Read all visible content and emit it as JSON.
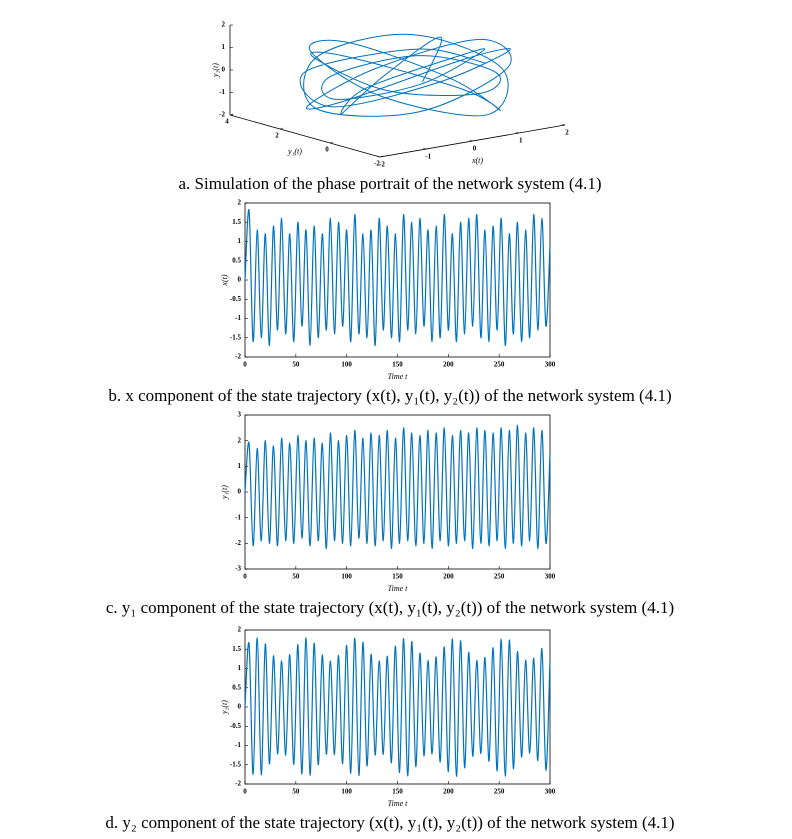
{
  "chart_data": [
    {
      "type": "line3d",
      "caption": "a. Simulation of the phase portrait of the network system (4.1)",
      "xlabel": "x(t)",
      "ylabel": "y₁(t)",
      "zlabel": "y₂(t)",
      "color": "#0072bd",
      "xlim": [
        -2,
        2
      ],
      "xticks": [
        -2,
        -1,
        0,
        1,
        2
      ],
      "ylim": [
        -2,
        4
      ],
      "yticks": [
        -2,
        0,
        2,
        4
      ],
      "zlim": [
        -2,
        2
      ],
      "zticks": [
        -2,
        -1,
        0,
        1,
        2
      ],
      "x": [
        0,
        1.2,
        0.4,
        -1.1,
        -1.4,
        0.2,
        1.4,
        0.9,
        -0.6,
        -1.5,
        -0.5,
        1.0,
        1.5,
        0.3,
        -1.2,
        -1.3,
        0.4,
        1.3,
        1.1,
        -0.4,
        -1.4,
        -0.8,
        0.8,
        1.5,
        0.5,
        -1.0,
        -1.5,
        -0.2,
        1.2,
        1.3,
        -0.1,
        -1.3,
        -1.1,
        0.6,
        1.4,
        0.7,
        -0.9,
        -1.4,
        0.1,
        1.1
      ],
      "y": [
        0,
        1.5,
        2.3,
        1.2,
        -0.3,
        -1.2,
        0.2,
        1.8,
        2.4,
        0.9,
        -0.8,
        -1.1,
        0.5,
        2.0,
        2.2,
        0.6,
        -0.9,
        -0.7,
        1.0,
        2.3,
        1.9,
        0.2,
        -1.1,
        -0.4,
        1.4,
        2.4,
        1.5,
        -0.2,
        -1.2,
        0.1,
        1.7,
        2.2,
        1.1,
        -0.6,
        -0.9,
        0.7,
        2.0,
        2.1,
        0.4,
        -0.5
      ],
      "z": [
        0,
        1.1,
        -0.6,
        -1.4,
        0.3,
        1.5,
        0.8,
        -1.0,
        -1.3,
        0.5,
        1.6,
        0.4,
        -1.2,
        -1.1,
        0.9,
        1.4,
        -0.2,
        -1.5,
        -0.5,
        1.2,
        1.3,
        -0.4,
        -1.4,
        0.2,
        1.5,
        0.7,
        -1.1,
        -1.2,
        0.6,
        1.4,
        0.1,
        -1.3,
        -0.8,
        1.0,
        1.2,
        -0.5,
        -1.4,
        0.3,
        1.3,
        0.6
      ]
    },
    {
      "type": "line",
      "caption": "b. x component of the state trajectory (x(t), y₁(t), y₂(t)) of the network system (4.1)",
      "xlabel": "Time t",
      "ylabel": "x(t)",
      "color": "#0072bd",
      "xlim": [
        0,
        300
      ],
      "xticks": [
        0,
        50,
        100,
        150,
        200,
        250,
        300
      ],
      "ylim": [
        -2,
        2
      ],
      "yticks": [
        -2,
        -1.5,
        -1,
        -0.5,
        0,
        0.5,
        1,
        1.5,
        2
      ],
      "x": [
        0,
        4,
        8,
        12,
        16,
        20,
        24,
        28,
        32,
        36,
        40,
        44,
        48,
        52,
        56,
        60,
        64,
        68,
        72,
        76,
        80,
        84,
        88,
        92,
        96,
        100,
        104,
        108,
        112,
        116,
        120,
        124,
        128,
        132,
        136,
        140,
        144,
        148,
        152,
        156,
        160,
        164,
        168,
        172,
        176,
        180,
        184,
        188,
        192,
        196,
        200,
        204,
        208,
        212,
        216,
        220,
        224,
        228,
        232,
        236,
        240,
        244,
        248,
        252,
        256,
        260,
        264,
        268,
        272,
        276,
        280,
        284,
        288,
        292,
        296,
        300
      ],
      "values": [
        0,
        1.8,
        -1.6,
        1.3,
        -1.5,
        1.2,
        -1.7,
        1.4,
        -1.3,
        1.6,
        -1.4,
        1.2,
        -1.6,
        1.5,
        -1.2,
        1.3,
        -1.7,
        1.4,
        -1.5,
        1.2,
        -1.3,
        1.6,
        -1.4,
        1.5,
        -1.2,
        1.3,
        -1.6,
        1.7,
        -1.4,
        1.2,
        -1.5,
        1.3,
        -1.7,
        1.6,
        -1.3,
        1.4,
        -1.5,
        1.2,
        -1.6,
        1.7,
        -1.3,
        1.5,
        -1.4,
        1.6,
        -1.2,
        1.3,
        -1.6,
        1.4,
        -1.5,
        1.7,
        -1.3,
        1.2,
        -1.6,
        1.5,
        -1.4,
        1.6,
        -1.2,
        1.7,
        -1.5,
        1.3,
        -1.6,
        1.4,
        -1.3,
        1.6,
        -1.7,
        1.2,
        -1.4,
        1.5,
        -1.6,
        1.3,
        -1.5,
        1.7,
        -1.3,
        1.6,
        -1.2,
        0.9
      ]
    },
    {
      "type": "line",
      "caption": "c. y₁ component of the state trajectory (x(t), y₁(t), y₂(t)) of the network system (4.1)",
      "xlabel": "Time t",
      "ylabel": "y₁(t)",
      "color": "#0072bd",
      "xlim": [
        0,
        300
      ],
      "xticks": [
        0,
        50,
        100,
        150,
        200,
        250,
        300
      ],
      "ylim": [
        -3,
        3
      ],
      "yticks": [
        -3,
        -2,
        -1,
        0,
        1,
        2,
        3
      ],
      "x": [
        0,
        4,
        8,
        12,
        16,
        20,
        24,
        28,
        32,
        36,
        40,
        44,
        48,
        52,
        56,
        60,
        64,
        68,
        72,
        76,
        80,
        84,
        88,
        92,
        96,
        100,
        104,
        108,
        112,
        116,
        120,
        124,
        128,
        132,
        136,
        140,
        144,
        148,
        152,
        156,
        160,
        164,
        168,
        172,
        176,
        180,
        184,
        188,
        192,
        196,
        200,
        204,
        208,
        212,
        216,
        220,
        224,
        228,
        232,
        236,
        240,
        244,
        248,
        252,
        256,
        260,
        264,
        268,
        272,
        276,
        280,
        284,
        288,
        292,
        296,
        300
      ],
      "values": [
        0,
        1.9,
        -2.1,
        1.7,
        -1.9,
        2.0,
        -2.0,
        1.8,
        -2.1,
        2.1,
        -1.9,
        1.9,
        -2.0,
        2.2,
        -1.8,
        2.0,
        -2.1,
        2.1,
        -1.9,
        1.9,
        -2.2,
        2.3,
        -1.9,
        2.0,
        -2.0,
        2.2,
        -2.1,
        2.4,
        -1.8,
        2.1,
        -2.0,
        2.3,
        -2.1,
        2.2,
        -1.9,
        2.4,
        -2.2,
        2.1,
        -2.0,
        2.5,
        -1.9,
        2.3,
        -2.1,
        2.2,
        -2.0,
        2.4,
        -2.2,
        2.3,
        -1.9,
        2.5,
        -2.1,
        2.2,
        -2.0,
        2.4,
        -1.9,
        2.3,
        -2.2,
        2.5,
        -2.0,
        2.4,
        -2.1,
        2.3,
        -1.9,
        2.5,
        -2.2,
        2.4,
        -2.0,
        2.6,
        -2.1,
        2.3,
        -1.9,
        2.5,
        -2.2,
        2.4,
        -2.0,
        1.5
      ]
    },
    {
      "type": "line",
      "caption": "d. y₂ component of the state trajectory (x(t), y₁(t), y₂(t)) of the network system (4.1)",
      "xlabel": "Time t",
      "ylabel": "y₂(t)",
      "color": "#0072bd",
      "xlim": [
        0,
        300
      ],
      "xticks": [
        0,
        50,
        100,
        150,
        200,
        250,
        300
      ],
      "ylim": [
        -2,
        2
      ],
      "yticks": [
        -2,
        -1.5,
        -1,
        -0.5,
        0,
        0.5,
        1,
        1.5,
        2
      ],
      "x": [
        0,
        4,
        8,
        12,
        16,
        20,
        24,
        28,
        32,
        36,
        40,
        44,
        48,
        52,
        56,
        60,
        64,
        68,
        72,
        76,
        80,
        84,
        88,
        92,
        96,
        100,
        104,
        108,
        112,
        116,
        120,
        124,
        128,
        132,
        136,
        140,
        144,
        148,
        152,
        156,
        160,
        164,
        168,
        172,
        176,
        180,
        184,
        188,
        192,
        196,
        200,
        204,
        208,
        212,
        216,
        220,
        224,
        228,
        232,
        236,
        240,
        244,
        248,
        252,
        256,
        260,
        264,
        268,
        272,
        276,
        280,
        284,
        288,
        292,
        296,
        300
      ],
      "values": [
        0,
        1.64,
        -1.75,
        1.8,
        -1.76,
        1.64,
        -1.48,
        1.33,
        -1.22,
        1.2,
        -1.25,
        1.36,
        -1.49,
        1.62,
        -1.74,
        1.8,
        -1.77,
        1.66,
        -1.5,
        1.35,
        -1.23,
        1.2,
        -1.24,
        1.34,
        -1.47,
        1.6,
        -1.72,
        1.79,
        -1.78,
        1.68,
        -1.53,
        1.37,
        -1.25,
        1.2,
        -1.23,
        1.32,
        -1.45,
        1.58,
        -1.7,
        1.78,
        -1.79,
        1.7,
        -1.55,
        1.4,
        -1.27,
        1.21,
        -1.22,
        1.3,
        -1.43,
        1.56,
        -1.68,
        1.77,
        -1.8,
        1.72,
        -1.58,
        1.42,
        -1.28,
        1.21,
        -1.21,
        1.29,
        -1.41,
        1.54,
        -1.66,
        1.76,
        -1.8,
        1.74,
        -1.6,
        1.44,
        -1.3,
        1.22,
        -1.2,
        1.27,
        -1.39,
        1.52,
        -1.64,
        1.2
      ]
    }
  ]
}
